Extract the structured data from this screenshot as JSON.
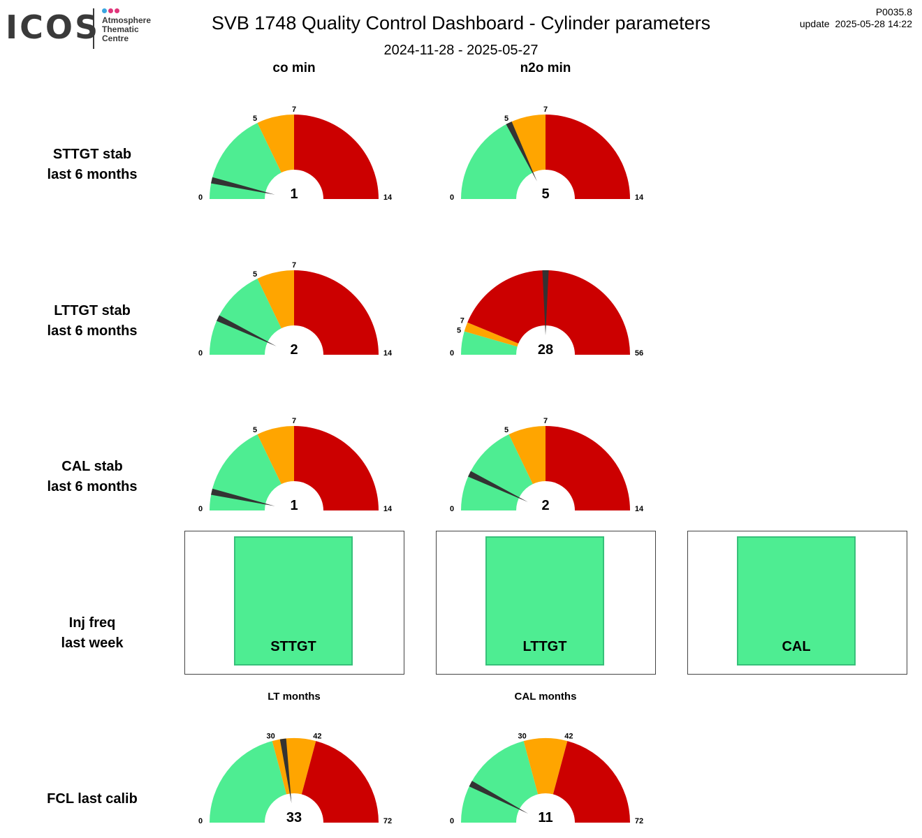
{
  "logo": {
    "word": "ICOS",
    "line1": "Atmosphere",
    "line2": "Thematic",
    "line3": "Centre",
    "dot_colors": [
      "#3aa6e0",
      "#e0357a",
      "#e0357a"
    ]
  },
  "header": {
    "title": "SVB 1748 Quality Control Dashboard - Cylinder parameters",
    "date_range": "2024-11-28 - 2025-05-27",
    "code": "P0035.8",
    "update": "update  2025-05-28 14:22"
  },
  "columns": [
    "co min",
    "n2o min"
  ],
  "rows": [
    {
      "line1": "STTGT stab",
      "line2": "last 6 months"
    },
    {
      "line1": "LTTGT stab",
      "line2": "last 6 months"
    },
    {
      "line1": "CAL stab",
      "line2": "last 6 months"
    },
    {
      "line1": "Inj freq",
      "line2": "last week"
    },
    {
      "line1": "FCL last calib",
      "line2": ""
    }
  ],
  "colors": {
    "green": "#4eed92",
    "orange": "#ffa500",
    "red": "#cc0000",
    "needle": "#333333",
    "box_border": "#37c07a"
  },
  "status_boxes": [
    {
      "label": "STTGT",
      "status": "green"
    },
    {
      "label": "LTTGT",
      "status": "green"
    },
    {
      "label": "CAL",
      "status": "green"
    }
  ],
  "chart_data": [
    {
      "type": "gauge",
      "row": "STTGT stab",
      "column": "co min",
      "min": 0,
      "max": 14,
      "green_to": 5,
      "orange_to": 7,
      "value": 1
    },
    {
      "type": "gauge",
      "row": "STTGT stab",
      "column": "n2o min",
      "min": 0,
      "max": 14,
      "green_to": 5,
      "orange_to": 7,
      "value": 5
    },
    {
      "type": "gauge",
      "row": "LTTGT stab",
      "column": "co min",
      "min": 0,
      "max": 14,
      "green_to": 5,
      "orange_to": 7,
      "value": 2
    },
    {
      "type": "gauge",
      "row": "LTTGT stab",
      "column": "n2o min",
      "min": 0,
      "max": 56,
      "green_to": 5,
      "orange_to": 7,
      "value": 28
    },
    {
      "type": "gauge",
      "row": "CAL stab",
      "column": "co min",
      "min": 0,
      "max": 14,
      "green_to": 5,
      "orange_to": 7,
      "value": 1
    },
    {
      "type": "gauge",
      "row": "CAL stab",
      "column": "n2o min",
      "min": 0,
      "max": 14,
      "green_to": 5,
      "orange_to": 7,
      "value": 2
    },
    {
      "type": "gauge",
      "row": "FCL last calib",
      "title": "LT months",
      "min": 0,
      "max": 72,
      "green_to": 30,
      "orange_to": 42,
      "value": 33
    },
    {
      "type": "gauge",
      "row": "FCL last calib",
      "title": "CAL months",
      "min": 0,
      "max": 72,
      "green_to": 30,
      "orange_to": 42,
      "value": 11
    }
  ]
}
